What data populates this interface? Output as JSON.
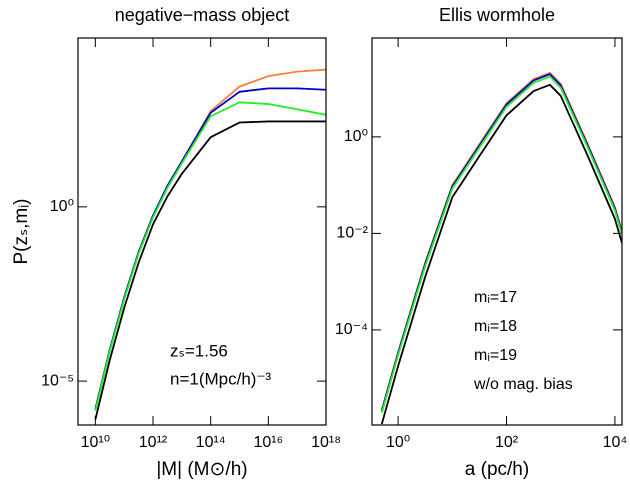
{
  "chart_data": [
    {
      "type": "line",
      "title": "negative−mass object",
      "xlabel": "|M| (M⊙/h)",
      "ylabel": "P(zₛ,mᵢ)",
      "xscale": "log",
      "yscale": "log",
      "xlim": [
        2500000000.0,
        1e+18
      ],
      "ylim": [
        5.5e-07,
        70000
      ],
      "xticks": [
        {
          "value": 10000000000.0,
          "label": "10¹⁰"
        },
        {
          "value": 1000000000000.0,
          "label": "10¹²"
        },
        {
          "value": 100000000000000.0,
          "label": "10¹⁴"
        },
        {
          "value": 1e+16,
          "label": "10¹⁶"
        },
        {
          "value": 1e+18,
          "label": "10¹⁸"
        }
      ],
      "yticks": [
        {
          "value": 1e-05,
          "label": "10⁻⁵"
        },
        {
          "value": 1,
          "label": "10⁰"
        }
      ],
      "x": [
        10000000000.0,
        31600000000.0,
        100000000000.0,
        316000000000.0,
        1000000000000.0,
        3160000000000.0,
        10000000000000.0,
        100000000000000.0,
        1000000000000000.0,
        1e+16,
        1e+17,
        1e+18
      ],
      "series": [
        {
          "name": "mᵢ=17",
          "color": "#ff7f3f",
          "values": [
            1.58e-06,
            7.9e-05,
            0.0025,
            0.05,
            0.56,
            4.0,
            20,
            562,
            2820,
            5620,
            7590,
            8710
          ]
        },
        {
          "name": "mᵢ=18",
          "color": "#0000cc",
          "values": [
            1.58e-06,
            7.9e-05,
            0.0025,
            0.05,
            0.56,
            4.0,
            20,
            501,
            2000,
            2510,
            2510,
            2290
          ]
        },
        {
          "name": "mᵢ=19",
          "color": "#22ee22",
          "values": [
            1.41e-06,
            7.1e-05,
            0.0022,
            0.045,
            0.5,
            3.5,
            17.8,
            398,
            1000,
            891,
            631,
            437
          ]
        },
        {
          "name": "w/o mag. bias",
          "color": "#000000",
          "values": [
            7.9e-07,
            4e-05,
            0.00126,
            0.025,
            0.316,
            2.0,
            8.9,
            100,
            263,
            282,
            282,
            282
          ]
        }
      ],
      "annotations": [
        "zₛ=1.56",
        "n=1(Mpc/h)⁻³"
      ]
    },
    {
      "type": "line",
      "title": "Ellis wormhole",
      "xlabel": "a (pc/h)",
      "xscale": "log",
      "yscale": "log",
      "xlim": [
        0.33,
        13500
      ],
      "ylim": [
        1.07e-06,
        112
      ],
      "xticks": [
        {
          "value": 1,
          "label": "10⁰"
        },
        {
          "value": 100,
          "label": "10²"
        },
        {
          "value": 10000,
          "label": "10⁴"
        }
      ],
      "yticks": [
        {
          "value": 0.0001,
          "label": "10⁻⁴"
        },
        {
          "value": 0.01,
          "label": "10⁻²"
        },
        {
          "value": 1,
          "label": "10⁰"
        }
      ],
      "x": [
        0.5,
        1,
        3.16,
        10,
        31.6,
        100,
        316,
        631,
        1000,
        3160,
        10000,
        13500
      ],
      "series": [
        {
          "name": "mᵢ=17",
          "color": "#ff7f3f",
          "values": [
            2.2e-06,
            3.5e-05,
            0.0025,
            0.1,
            0.71,
            5.0,
            15.8,
            21.4,
            12.6,
            0.71,
            0.035,
            0.011
          ]
        },
        {
          "name": "mᵢ=18",
          "color": "#0000cc",
          "values": [
            2.1e-06,
            3.3e-05,
            0.00235,
            0.094,
            0.66,
            4.7,
            14.8,
            20,
            11.7,
            0.66,
            0.033,
            0.0105
          ]
        },
        {
          "name": "mᵢ=19",
          "color": "#22ee22",
          "values": [
            1.9e-06,
            3e-05,
            0.0021,
            0.085,
            0.6,
            4.2,
            13.2,
            17.8,
            10.5,
            0.6,
            0.03,
            0.0095
          ]
        },
        {
          "name": "w/o mag. bias",
          "color": "#000000",
          "values": [
            1.12e-06,
            1.78e-05,
            0.00126,
            0.056,
            0.4,
            2.8,
            8.9,
            12,
            7.1,
            0.4,
            0.02,
            0.0063
          ]
        }
      ],
      "legend": "lower right"
    }
  ]
}
